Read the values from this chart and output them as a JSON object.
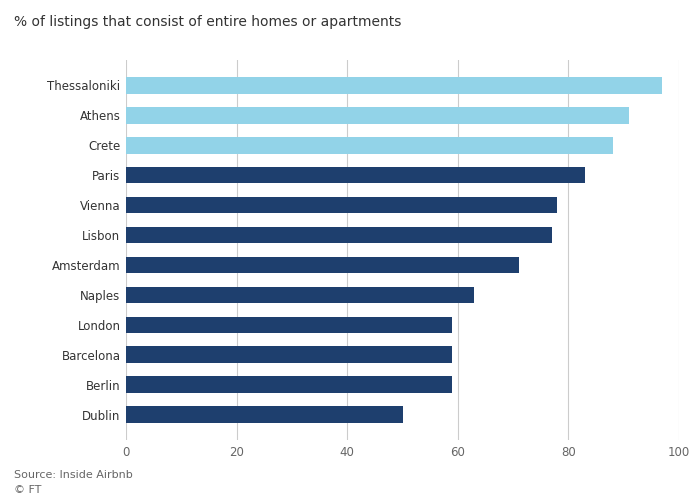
{
  "title": "% of listings that consist of entire homes or apartments",
  "categories": [
    "Thessaloniki",
    "Athens",
    "Crete",
    "Paris",
    "Vienna",
    "Lisbon",
    "Amsterdam",
    "Naples",
    "London",
    "Barcelona",
    "Berlin",
    "Dublin"
  ],
  "values": [
    97,
    91,
    88,
    83,
    78,
    77,
    71,
    63,
    59,
    59,
    59,
    50
  ],
  "bar_colors": [
    "#92d3e8",
    "#92d3e8",
    "#92d3e8",
    "#1e3f6e",
    "#1e3f6e",
    "#1e3f6e",
    "#1e3f6e",
    "#1e3f6e",
    "#1e3f6e",
    "#1e3f6e",
    "#1e3f6e",
    "#1e3f6e"
  ],
  "xlim": [
    0,
    100
  ],
  "xticks": [
    0,
    20,
    40,
    60,
    80,
    100
  ],
  "source": "Source: Inside Airbnb",
  "footer": "© FT",
  "bg_color": "#ffffff",
  "axis_color": "#333333",
  "tick_color": "#666666",
  "grid_color": "#cccccc",
  "title_fontsize": 10,
  "label_fontsize": 8.5,
  "tick_fontsize": 8.5,
  "source_fontsize": 8,
  "bar_height": 0.55
}
